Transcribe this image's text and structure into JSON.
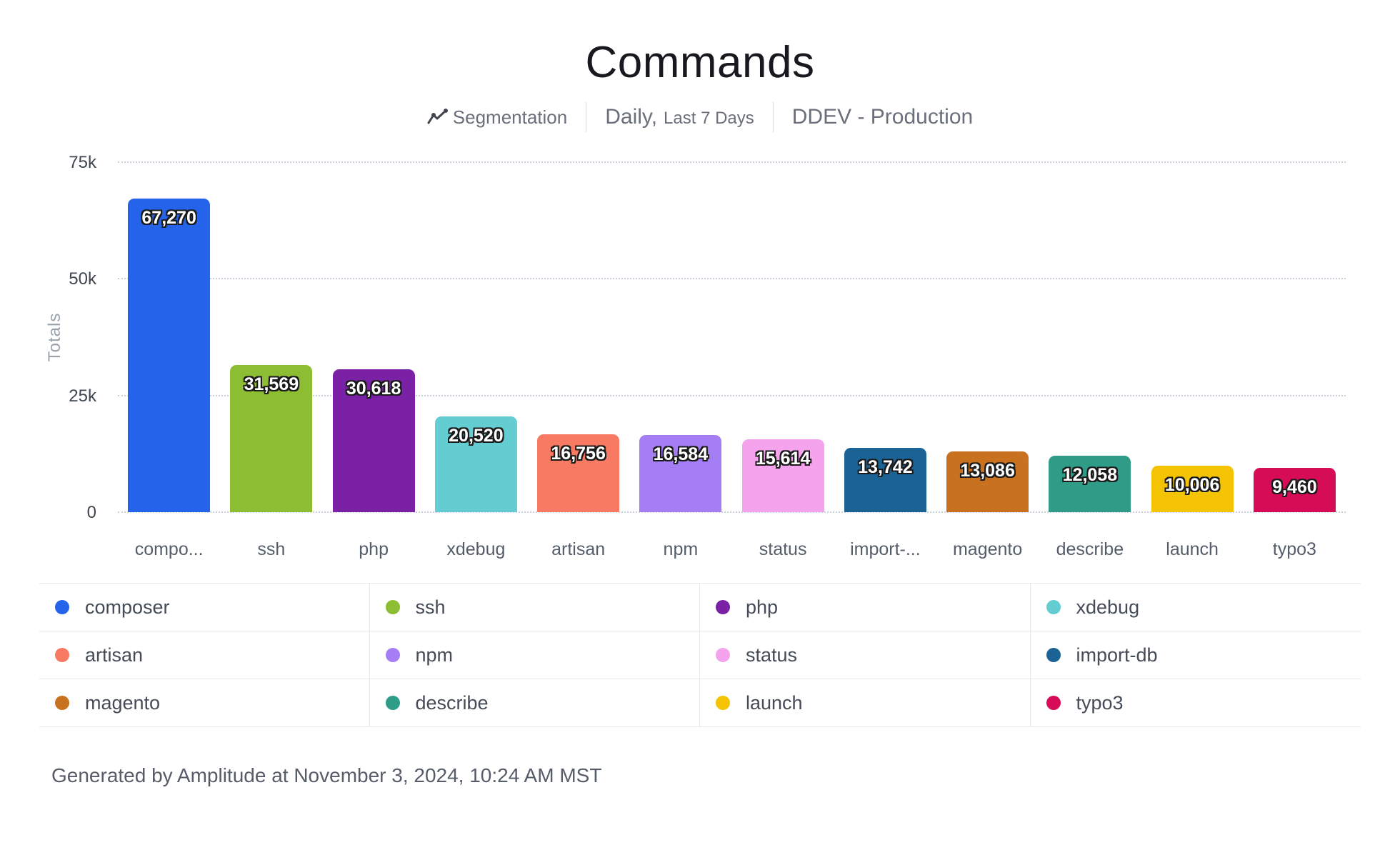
{
  "header": {
    "title": "Commands",
    "subtitle": {
      "segmentation_label": "Segmentation",
      "date_range_primary": "Daily,",
      "date_range_secondary": "Last 7 Days",
      "environment": "DDEV - Production"
    }
  },
  "chart_data": {
    "type": "bar",
    "title": "Commands",
    "xlabel": "",
    "ylabel": "Totals",
    "ylim": [
      0,
      75000
    ],
    "grid": "horizontal-dotted",
    "legend_position": "bottom",
    "yticks": [
      {
        "value": 0,
        "label": "0"
      },
      {
        "value": 25000,
        "label": "25k"
      },
      {
        "value": 50000,
        "label": "50k"
      },
      {
        "value": 75000,
        "label": "75k"
      }
    ],
    "bars": [
      {
        "series": "composer",
        "x_label": "compo...",
        "value": 67270,
        "value_label": "67,270",
        "color": "#2563eb"
      },
      {
        "series": "ssh",
        "x_label": "ssh",
        "value": 31569,
        "value_label": "31,569",
        "color": "#8cbd32"
      },
      {
        "series": "php",
        "x_label": "php",
        "value": 30618,
        "value_label": "30,618",
        "color": "#7a21a5"
      },
      {
        "series": "xdebug",
        "x_label": "xdebug",
        "value": 20520,
        "value_label": "20,520",
        "color": "#64cdd2"
      },
      {
        "series": "artisan",
        "x_label": "artisan",
        "value": 16756,
        "value_label": "16,756",
        "color": "#f97a62"
      },
      {
        "series": "npm",
        "x_label": "npm",
        "value": 16584,
        "value_label": "16,584",
        "color": "#a57df5"
      },
      {
        "series": "status",
        "x_label": "status",
        "value": 15614,
        "value_label": "15,614",
        "color": "#f6a3ee"
      },
      {
        "series": "import-db",
        "x_label": "import-...",
        "value": 13742,
        "value_label": "13,742",
        "color": "#1b6395"
      },
      {
        "series": "magento",
        "x_label": "magento",
        "value": 13086,
        "value_label": "13,086",
        "color": "#c8711f"
      },
      {
        "series": "describe",
        "x_label": "describe",
        "value": 12058,
        "value_label": "12,058",
        "color": "#2e9c87"
      },
      {
        "series": "launch",
        "x_label": "launch",
        "value": 10006,
        "value_label": "10,006",
        "color": "#f4c404"
      },
      {
        "series": "typo3",
        "x_label": "typo3",
        "value": 9460,
        "value_label": "9,460",
        "color": "#d60c56"
      }
    ]
  },
  "legend": {
    "items": [
      {
        "label": "composer",
        "color": "#2563eb"
      },
      {
        "label": "ssh",
        "color": "#8cbd32"
      },
      {
        "label": "php",
        "color": "#7a21a5"
      },
      {
        "label": "xdebug",
        "color": "#64cdd2"
      },
      {
        "label": "artisan",
        "color": "#f97a62"
      },
      {
        "label": "npm",
        "color": "#a57df5"
      },
      {
        "label": "status",
        "color": "#f6a3ee"
      },
      {
        "label": "import-db",
        "color": "#1b6395"
      },
      {
        "label": "magento",
        "color": "#c8711f"
      },
      {
        "label": "describe",
        "color": "#2e9c87"
      },
      {
        "label": "launch",
        "color": "#f4c404"
      },
      {
        "label": "typo3",
        "color": "#d60c56"
      }
    ]
  },
  "footer": {
    "generated_text": "Generated by Amplitude at November 3, 2024, 10:24 AM MST"
  }
}
